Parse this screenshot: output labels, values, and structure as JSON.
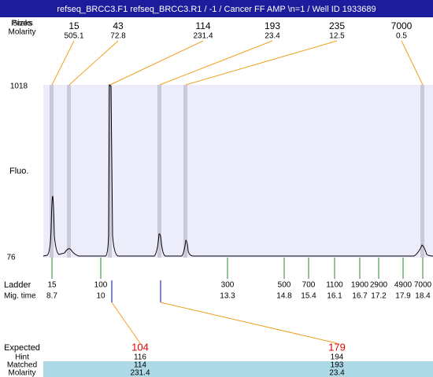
{
  "header": {
    "title": "refseq_BRCC3.F1  refseq_BRCC3.R1 / -1 / Cancer FF AMP \\n=1 / Well ID 1933689"
  },
  "peaks": {
    "label_peaks": "Peaks",
    "label_sizes": "Sizes",
    "label_molarity": "Molarity",
    "sizes": [
      15,
      43,
      114,
      193,
      235,
      7000
    ],
    "molarity": [
      505.1,
      72.8,
      231.4,
      23.4,
      12.5,
      0.5
    ]
  },
  "axis": {
    "y_label": "Fluo.",
    "y_max": 1018,
    "y_min": 76
  },
  "ladder": {
    "label": "Ladder",
    "time_label": "Mig. time",
    "sizes": [
      15,
      100,
      300,
      500,
      700,
      1100,
      1900,
      2900,
      4900,
      7000
    ],
    "times": [
      8.7,
      10,
      13.3,
      14.8,
      15.4,
      16.1,
      16.7,
      17.2,
      17.9,
      18.4
    ]
  },
  "expected": {
    "label": "Expected",
    "hint_label": "Hint",
    "matched_label": "Matched",
    "molarity_label": "Molarity",
    "expected": [
      104,
      179
    ],
    "hint": [
      116,
      194
    ],
    "matched": [
      114,
      193
    ],
    "molarity": [
      231.4,
      23.4
    ]
  }
}
